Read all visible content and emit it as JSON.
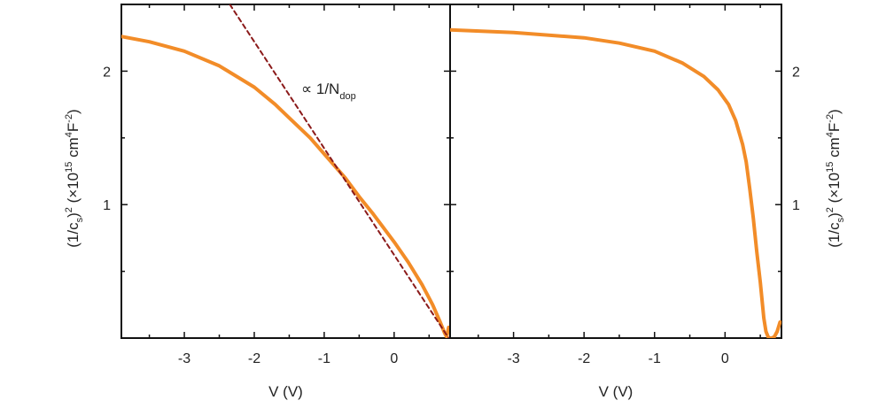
{
  "chart_data": [
    {
      "type": "line",
      "panel": "left",
      "xlabel": "V (V)",
      "ylabel_parts": {
        "a": "(1/c",
        "b": "s",
        "c": ")",
        "d": "2",
        "e": " (×10",
        "f": "15",
        "g": " cm",
        "h": "4",
        "i": "F",
        "j": "-2",
        "k": ")"
      },
      "xlim": [
        -3.9,
        0.8
      ],
      "ylim": [
        0,
        2.5
      ],
      "xticks": [
        -3,
        -2,
        -1,
        0
      ],
      "xtick_labels": [
        "-3",
        "-2",
        "-1",
        "0"
      ],
      "yticks": [
        1,
        2
      ],
      "ytick_labels": [
        "1",
        "2"
      ],
      "annotation": {
        "prefix": "∝ 1/N",
        "subscript": "dop"
      },
      "series": [
        {
          "color": "#f28c28",
          "style": "solid",
          "x": [
            -3.9,
            -3.5,
            -3.0,
            -2.5,
            -2.0,
            -1.7,
            -1.5,
            -1.2,
            -1.0,
            -0.7,
            -0.5,
            -0.3,
            0.0,
            0.2,
            0.4,
            0.55,
            0.65,
            0.72,
            0.75,
            0.78
          ],
          "y": [
            2.26,
            2.22,
            2.15,
            2.04,
            1.88,
            1.75,
            1.65,
            1.5,
            1.38,
            1.2,
            1.06,
            0.93,
            0.72,
            0.57,
            0.4,
            0.25,
            0.13,
            0.04,
            0.01,
            0.08
          ]
        },
        {
          "color": "#8b1a1a",
          "style": "dashed",
          "x": [
            -2.35,
            0.78
          ],
          "y": [
            2.5,
            0.0
          ]
        }
      ]
    },
    {
      "type": "line",
      "panel": "right",
      "xlabel": "V (V)",
      "ylabel_parts": {
        "a": "(1/c",
        "b": "s",
        "c": ")",
        "d": "2",
        "e": " (×10",
        "f": "15",
        "g": " cm",
        "h": "4",
        "i": "F",
        "j": "-2",
        "k": ")"
      },
      "xlim": [
        -3.9,
        0.8
      ],
      "ylim": [
        0,
        2.5
      ],
      "xticks": [
        -3,
        -2,
        -1,
        0
      ],
      "xtick_labels": [
        "-3",
        "-2",
        "-1",
        "0"
      ],
      "yticks": [
        1,
        2
      ],
      "ytick_labels": [
        "1",
        "2"
      ],
      "series": [
        {
          "color": "#f28c28",
          "style": "solid",
          "x": [
            -3.9,
            -3.0,
            -2.0,
            -1.5,
            -1.0,
            -0.6,
            -0.3,
            -0.1,
            0.05,
            0.15,
            0.25,
            0.3,
            0.35,
            0.4,
            0.45,
            0.5,
            0.55,
            0.58,
            0.61,
            0.63,
            0.66,
            0.7,
            0.74,
            0.78
          ],
          "y": [
            2.31,
            2.29,
            2.25,
            2.21,
            2.15,
            2.06,
            1.96,
            1.86,
            1.75,
            1.63,
            1.45,
            1.32,
            1.12,
            0.9,
            0.65,
            0.42,
            0.15,
            0.05,
            0.01,
            0.0,
            0.0,
            0.01,
            0.05,
            0.12
          ]
        }
      ]
    }
  ]
}
